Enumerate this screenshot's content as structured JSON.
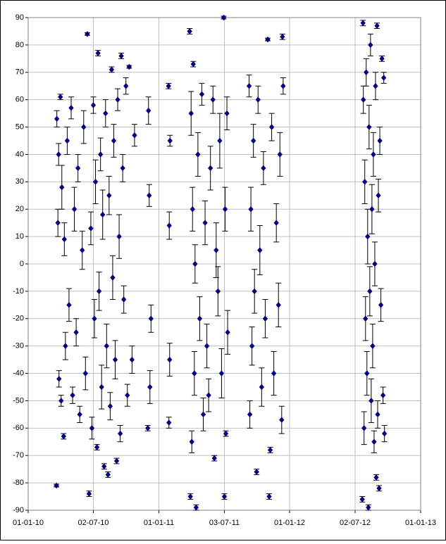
{
  "chart_data": {
    "type": "scatter",
    "xlim": [
      "01-01-10",
      "01-01-13"
    ],
    "xticks": [
      "01-01-10",
      "02-07-10",
      "01-01-11",
      "03-07-11",
      "01-01-12",
      "02-07-12",
      "01-01-13"
    ],
    "ylim": [
      -90,
      90
    ],
    "yticks": [
      -90,
      -80,
      -70,
      -60,
      -50,
      -40,
      -30,
      -20,
      -10,
      0,
      10,
      20,
      30,
      40,
      50,
      60,
      70,
      80,
      90
    ],
    "grid": true,
    "series": [
      {
        "color": "#000080",
        "x": [
          "21-03-10",
          "22-03-10",
          "25-03-10",
          "27-03-10",
          "28-03-10",
          "01-04-10",
          "03-04-10",
          "05-04-10",
          "10-04-10",
          "12-04-10",
          "15-04-10",
          "20-04-10",
          "25-04-10",
          "01-05-10",
          "05-05-10",
          "10-05-10",
          "15-05-10",
          "20-05-10",
          "25-05-10",
          "01-06-10",
          "05-06-10",
          "10-06-10",
          "15-06-10",
          "20-06-10",
          "25-06-10",
          "28-06-10",
          "02-07-10",
          "05-07-10",
          "08-07-10",
          "12-07-10",
          "15-07-10",
          "18-07-10",
          "22-07-10",
          "25-07-10",
          "28-07-10",
          "01-08-10",
          "05-08-10",
          "08-08-10",
          "12-08-10",
          "15-08-10",
          "18-08-10",
          "22-08-10",
          "25-08-10",
          "28-08-10",
          "01-09-10",
          "05-09-10",
          "08-09-10",
          "12-09-10",
          "15-09-10",
          "18-09-10",
          "22-09-10",
          "25-09-10",
          "01-10-10",
          "05-10-10",
          "10-10-10",
          "18-10-10",
          "25-10-10",
          "01-12-10",
          "03-12-10",
          "05-12-10",
          "07-12-10",
          "10-12-10",
          "28-01-11",
          "29-01-11",
          "30-01-11",
          "31-01-11",
          "01-02-11",
          "28-03-11",
          "30-03-11",
          "01-04-11",
          "03-04-11",
          "05-04-11",
          "07-04-11",
          "10-04-11",
          "12-04-11",
          "15-04-11",
          "20-04-11",
          "25-04-11",
          "01-05-11",
          "05-05-11",
          "10-05-11",
          "15-05-11",
          "20-05-11",
          "25-05-11",
          "01-06-11",
          "05-06-11",
          "10-06-11",
          "15-06-11",
          "20-06-11",
          "25-06-11",
          "01-07-11",
          "03-07-11",
          "05-07-11",
          "07-07-11",
          "10-07-11",
          "12-07-11",
          "10-09-11",
          "12-09-11",
          "15-09-11",
          "18-09-11",
          "22-09-11",
          "25-09-11",
          "01-10-11",
          "05-10-11",
          "10-10-11",
          "15-10-11",
          "20-10-11",
          "25-10-11",
          "01-11-11",
          "05-11-11",
          "08-11-11",
          "12-11-11",
          "18-11-11",
          "25-11-11",
          "01-12-11",
          "05-12-11",
          "10-12-11",
          "12-12-11",
          "14-12-11",
          "22-07-12",
          "24-07-12",
          "25-07-12",
          "27-07-12",
          "29-07-12",
          "31-07-12",
          "02-08-12",
          "04-08-12",
          "06-08-12",
          "08-08-12",
          "10-08-12",
          "12-08-12",
          "14-08-12",
          "16-08-12",
          "18-08-12",
          "20-08-12",
          "22-08-12",
          "24-08-12",
          "26-08-12",
          "28-08-12",
          "30-08-12",
          "01-09-12",
          "03-09-12",
          "05-09-12",
          "07-09-12",
          "09-09-12",
          "12-09-12",
          "15-09-12",
          "18-09-12",
          "20-09-12",
          "22-09-12"
        ],
        "values": [
          -81,
          53,
          15,
          40,
          -42,
          61,
          -50,
          28,
          -63,
          9,
          -30,
          45,
          -15,
          57,
          -48,
          20,
          -25,
          35,
          -55,
          5,
          50,
          -40,
          84,
          -84,
          13,
          -60,
          58,
          -20,
          30,
          -67,
          77,
          -10,
          40,
          -45,
          18,
          -74,
          55,
          -30,
          -77,
          25,
          -52,
          71,
          -5,
          45,
          -35,
          -72,
          60,
          10,
          -62,
          76,
          35,
          -13,
          65,
          -48,
          72,
          -35,
          47,
          -60,
          56,
          25,
          -45,
          -20,
          65,
          -58,
          14,
          -35,
          45,
          85,
          -85,
          55,
          -65,
          20,
          73,
          -40,
          0,
          -89,
          40,
          -20,
          62,
          -55,
          15,
          -30,
          -48,
          35,
          60,
          -71,
          5,
          -10,
          45,
          -40,
          90,
          -85,
          20,
          -62,
          55,
          -25,
          65,
          -55,
          20,
          -30,
          45,
          -10,
          -76,
          60,
          5,
          -45,
          35,
          -20,
          82,
          -85,
          -68,
          50,
          -40,
          15,
          -15,
          40,
          -57,
          83,
          65,
          -86,
          88,
          60,
          -60,
          30,
          -20,
          70,
          -40,
          10,
          -89,
          50,
          -10,
          80,
          -50,
          20,
          -30,
          40,
          -65,
          0,
          65,
          -78,
          87,
          -55,
          25,
          -82,
          45,
          -15,
          75,
          -48,
          68,
          -62
        ],
        "errors": [
          0.5,
          3,
          5,
          4,
          3,
          1,
          2,
          8,
          1,
          6,
          5,
          5,
          6,
          4,
          3,
          8,
          5,
          5,
          3,
          7,
          6,
          6,
          0.5,
          1,
          6,
          4,
          3,
          7,
          8,
          1,
          1,
          7,
          6,
          8,
          9,
          1,
          5,
          8,
          1,
          7,
          5,
          1,
          8,
          6,
          7,
          1,
          4,
          8,
          3,
          1,
          5,
          5,
          3,
          4,
          0.5,
          5,
          4,
          1,
          5,
          4,
          6,
          5,
          1,
          2,
          5,
          6,
          2,
          1,
          1,
          8,
          4,
          8,
          1,
          8,
          7,
          1,
          8,
          8,
          4,
          6,
          8,
          8,
          6,
          8,
          5,
          1,
          10,
          9,
          10,
          9,
          0.5,
          1,
          8,
          1,
          6,
          8,
          4,
          5,
          8,
          7,
          6,
          8,
          1,
          5,
          9,
          7,
          6,
          7,
          0.5,
          1,
          1,
          5,
          8,
          7,
          8,
          8,
          5,
          1,
          3,
          1,
          1,
          5,
          6,
          8,
          8,
          5,
          8,
          10,
          1,
          8,
          9,
          4,
          8,
          9,
          8,
          8,
          4,
          8,
          5,
          1,
          1,
          5,
          6,
          1,
          5,
          6,
          1,
          3,
          2,
          3
        ]
      }
    ]
  }
}
